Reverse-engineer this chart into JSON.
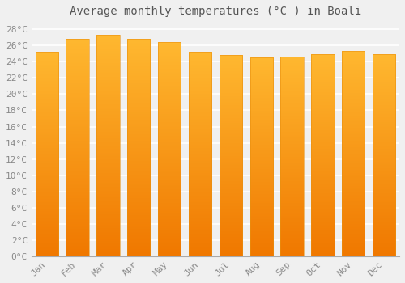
{
  "title": "Average monthly temperatures (°C ) in Boali",
  "months": [
    "Jan",
    "Feb",
    "Mar",
    "Apr",
    "May",
    "Jun",
    "Jul",
    "Aug",
    "Sep",
    "Oct",
    "Nov",
    "Dec"
  ],
  "values": [
    25.2,
    26.8,
    27.3,
    26.8,
    26.4,
    25.2,
    24.8,
    24.5,
    24.6,
    24.9,
    25.3,
    24.9
  ],
  "bar_color_top": "#FFB830",
  "bar_color_bottom": "#F07800",
  "bar_edge_color": "#E89010",
  "ylim": [
    0,
    29
  ],
  "ytick_step": 2,
  "background_color": "#f0f0f0",
  "grid_color": "#ffffff",
  "title_fontsize": 10,
  "tick_fontsize": 8,
  "bar_width": 0.75
}
